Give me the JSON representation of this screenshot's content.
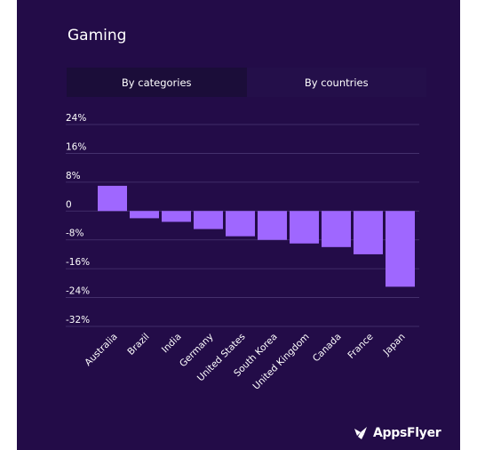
{
  "title": "Gaming",
  "tabs": [
    {
      "label": "By categories",
      "active": false
    },
    {
      "label": "By countries",
      "active": true
    }
  ],
  "brand": "AppsFlyer",
  "colors": {
    "background": "#230c48",
    "bar": "#9f67ff",
    "grid": "#4a3672",
    "text": "#ffffff"
  },
  "chart_data": {
    "type": "bar",
    "categories": [
      "Australia",
      "Brazil",
      "India",
      "Germany",
      "United States",
      "South Korea",
      "United Kingdom",
      "Canada",
      "France",
      "Japan"
    ],
    "values": [
      7,
      -2,
      -3,
      -5,
      -7,
      -8,
      -9,
      -10,
      -12,
      -21
    ],
    "ylim": [
      -32,
      24
    ],
    "yticks": [
      24,
      16,
      8,
      0,
      -8,
      -16,
      -24,
      -32
    ],
    "ytick_labels": [
      "24%",
      "16%",
      "8%",
      "0",
      "-8%",
      "-16%",
      "-24%",
      "-32%"
    ],
    "grid": true
  }
}
